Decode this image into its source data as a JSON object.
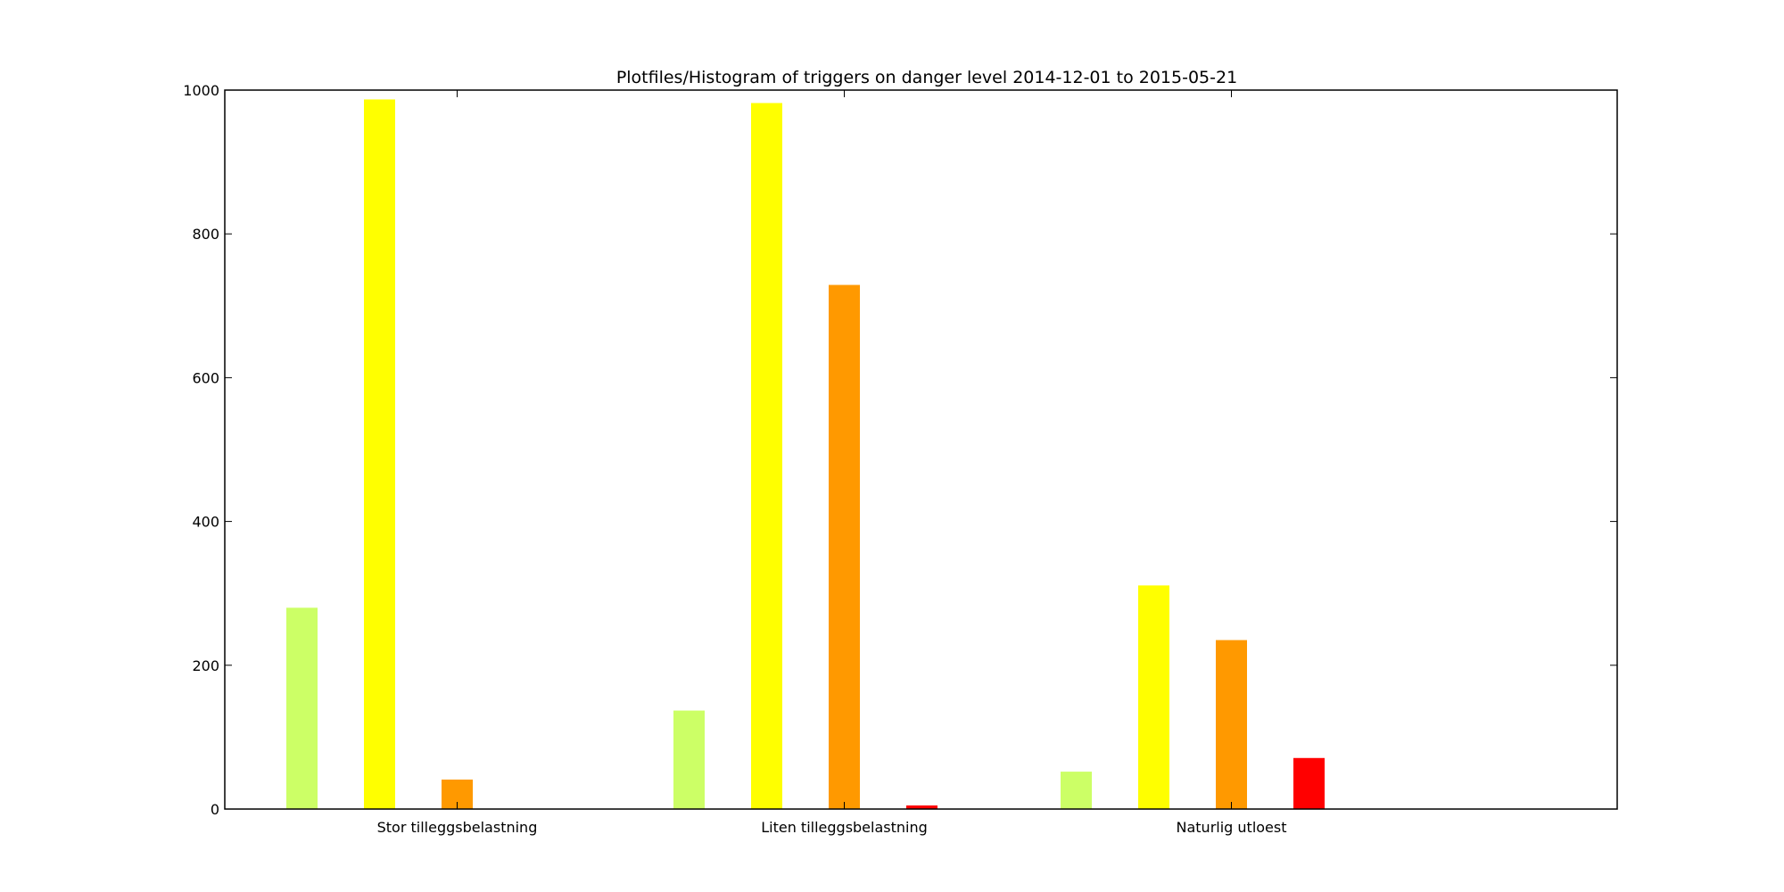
{
  "chart_data": {
    "type": "bar",
    "title": "Plotfiles/Histogram of triggers on danger level 2014-12-01 to 2015-05-21",
    "xlabel": "",
    "ylabel": "",
    "ylim": [
      0,
      1000
    ],
    "yticks": [
      "0",
      "200",
      "400",
      "600",
      "800",
      "1000"
    ],
    "categories": [
      "Stor tilleggsbelastning",
      "Liten tilleggsbelastning",
      "Naturlig utloest"
    ],
    "series": [
      {
        "color": "#ccff66",
        "values": [
          280,
          137,
          52
        ]
      },
      {
        "color": "#ffff00",
        "values": [
          987,
          982,
          311
        ]
      },
      {
        "color": "#ff9900",
        "values": [
          41,
          729,
          235
        ]
      },
      {
        "color": "#ff0000",
        "values": [
          0,
          5,
          71
        ]
      }
    ],
    "grid": false,
    "legend": "none"
  }
}
